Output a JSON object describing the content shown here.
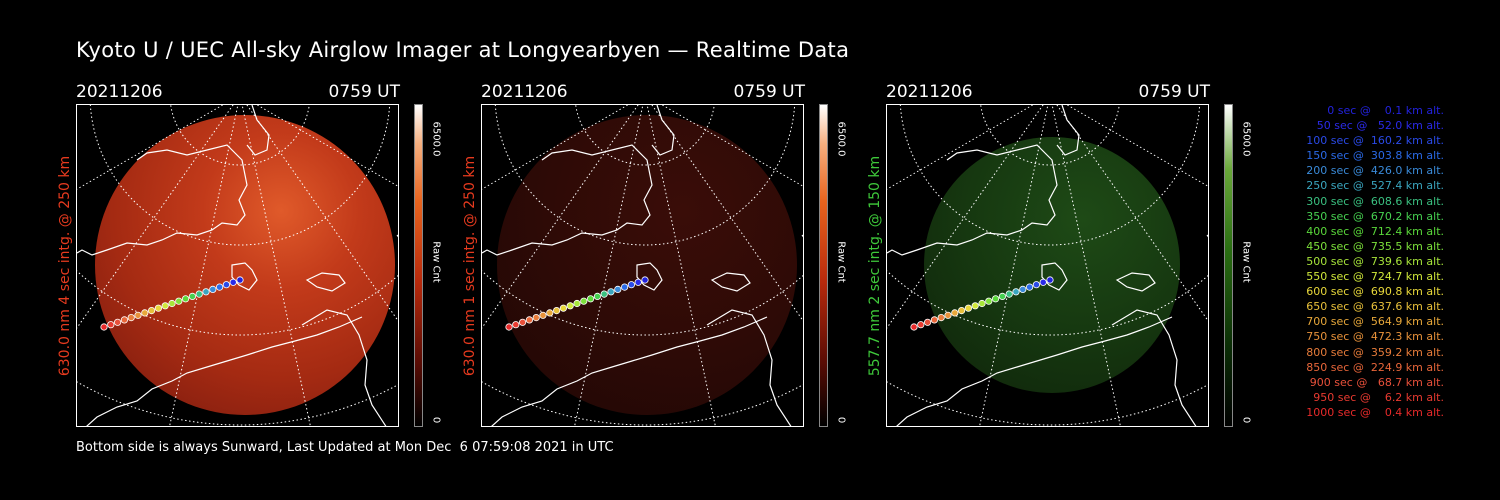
{
  "title": "Kyoto U / UEC All-sky Airglow Imager at Longyearbyen — Realtime Data",
  "footer": "Bottom side is always Sunward, Last Updated at Mon Dec  6 07:59:08 2021 in UTC",
  "panels": [
    {
      "date": "20211206",
      "time": "0759 UT",
      "ylabel": "630.0 nm 4 sec intg. @ 250 km",
      "label_color": "#e63a1e",
      "cbar_max": "6500.0",
      "cbar_min": "0",
      "cbar_unit": "Raw Cnt",
      "cmap": "red",
      "intensity": "bright"
    },
    {
      "date": "20211206",
      "time": "0759 UT",
      "ylabel": "630.0 nm 1 sec intg. @ 250 km",
      "label_color": "#e63a1e",
      "cbar_max": "6500.0",
      "cbar_min": "0",
      "cbar_unit": "Raw Cnt",
      "cmap": "red",
      "intensity": "dim"
    },
    {
      "date": "20211206",
      "time": "0759 UT",
      "ylabel": "557.7 nm 2 sec intg. @ 150 km",
      "label_color": "#3ec83a",
      "cbar_max": "6500.0",
      "cbar_min": "0",
      "cbar_unit": "Raw Cnt",
      "cmap": "green",
      "intensity": "dim"
    }
  ],
  "legend": [
    {
      "text": "   0 sec @    0.1 km alt.",
      "color": "#2222dd"
    },
    {
      "text": "  50 sec @   52.0 km alt.",
      "color": "#2a2ae8"
    },
    {
      "text": " 100 sec @  160.2 km alt.",
      "color": "#2a4ae8"
    },
    {
      "text": " 150 sec @  303.8 km alt.",
      "color": "#2a6ae8"
    },
    {
      "text": " 200 sec @  426.0 km alt.",
      "color": "#3a8ad8"
    },
    {
      "text": " 250 sec @  527.4 km alt.",
      "color": "#3aa6c0"
    },
    {
      "text": " 300 sec @  608.6 km alt.",
      "color": "#3ac080"
    },
    {
      "text": " 350 sec @  670.2 km alt.",
      "color": "#46d050"
    },
    {
      "text": " 400 sec @  712.4 km alt.",
      "color": "#5ad83a"
    },
    {
      "text": " 450 sec @  735.5 km alt.",
      "color": "#7ce03a"
    },
    {
      "text": " 500 sec @  739.6 km alt.",
      "color": "#a8e63a"
    },
    {
      "text": " 550 sec @  724.7 km alt.",
      "color": "#d0e83a"
    },
    {
      "text": " 600 sec @  690.8 km alt.",
      "color": "#e8d83a"
    },
    {
      "text": " 650 sec @  637.6 km alt.",
      "color": "#e8c03a"
    },
    {
      "text": " 700 sec @  564.9 km alt.",
      "color": "#e8a83a"
    },
    {
      "text": " 750 sec @  472.3 km alt.",
      "color": "#e8923a"
    },
    {
      "text": " 800 sec @  359.2 km alt.",
      "color": "#e87c3a"
    },
    {
      "text": " 850 sec @  224.9 km alt.",
      "color": "#e8663a"
    },
    {
      "text": " 900 sec @   68.7 km alt.",
      "color": "#e8503a"
    },
    {
      "text": " 950 sec @    6.2 km alt.",
      "color": "#e83a30"
    },
    {
      "text": "1000 sec @    0.4 km alt.",
      "color": "#e82a2a"
    }
  ]
}
